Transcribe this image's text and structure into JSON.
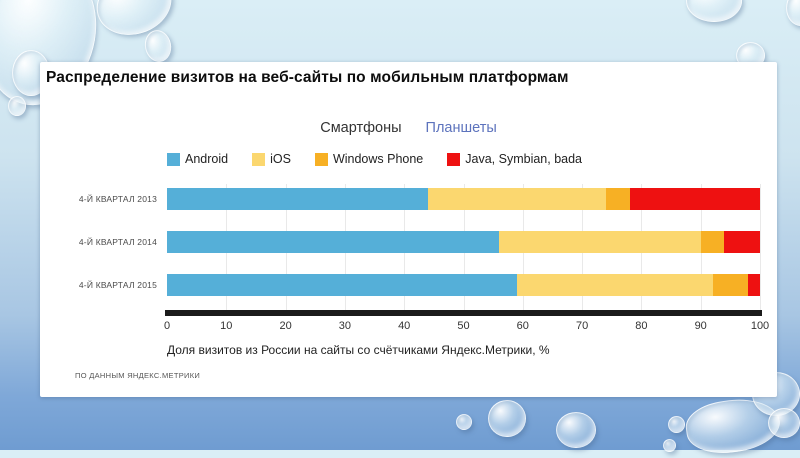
{
  "slide": {
    "title": "Распределение визитов на веб-сайты по мобильным платформам",
    "tabs": [
      {
        "label": "Смартфоны",
        "active": true
      },
      {
        "label": "Планшеты",
        "active": false
      }
    ],
    "footer": "ПО ДАННЫМ ЯНДЕКС.МЕТРИКИ"
  },
  "chart_data": {
    "type": "bar",
    "orientation": "horizontal",
    "stacked": true,
    "title": "Распределение визитов на веб-сайты по мобильным платформам",
    "categories": [
      "4-Й КВАРТАЛ 2013",
      "4-Й КВАРТАЛ 2014",
      "4-Й КВАРТАЛ 2015"
    ],
    "series": [
      {
        "name": "Android",
        "color": "#55afd8",
        "values": [
          44,
          56,
          59
        ]
      },
      {
        "name": "iOS",
        "color": "#fbd76f",
        "values": [
          30,
          34,
          33
        ]
      },
      {
        "name": "Windows Phone",
        "color": "#f7b024",
        "values": [
          4,
          4,
          6
        ]
      },
      {
        "name": "Java, Symbian, bada",
        "color": "#ee1111",
        "values": [
          22,
          6,
          2
        ]
      }
    ],
    "xlabel": "Доля визитов из России на сайты со счётчиками Яндекс.Метрики, %",
    "x_ticks": [
      0,
      10,
      20,
      30,
      40,
      50,
      60,
      70,
      80,
      90,
      100
    ],
    "xlim": [
      0,
      100
    ],
    "grid": true,
    "legend_position": "top",
    "source_note": "ПО ДАННЫМ ЯНДЕКС.МЕТРИКИ"
  },
  "colors": {
    "background_top": "#daeef6",
    "background_bottom": "#6f9cd1",
    "card": "#ffffff",
    "axis": "#1b1b1b",
    "tab_active": "#333333",
    "tab_link": "#5d73bd"
  }
}
